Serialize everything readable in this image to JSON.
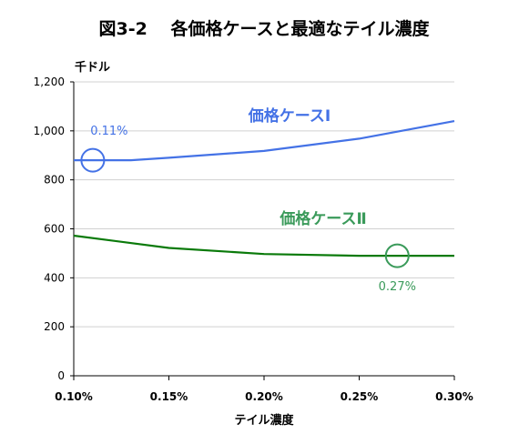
{
  "chart_data": {
    "type": "line",
    "title": "図3-2　 各価格ケースと最適なテイル濃度",
    "ylabel": "千ドル",
    "xlabel": "テイル濃度",
    "ylim": [
      0,
      1200
    ],
    "xlim": [
      0.001,
      0.003
    ],
    "y_ticks": [
      0,
      200,
      400,
      600,
      800,
      1000,
      1200
    ],
    "y_tick_labels": [
      "0",
      "200",
      "400",
      "600",
      "800",
      "1,000",
      "1,200"
    ],
    "x_ticks": [
      0.001,
      0.0015,
      0.002,
      0.0025,
      0.003
    ],
    "x_tick_labels": [
      "0.10%",
      "0.15%",
      "0.20%",
      "0.25%",
      "0.30%"
    ],
    "grid": "horizontal",
    "series": [
      {
        "name": "価格ケースⅠ",
        "color": "#4472e6",
        "x": [
          0.001,
          0.0011,
          0.0013,
          0.0015,
          0.002,
          0.0025,
          0.003
        ],
        "values": [
          880,
          880,
          880,
          890,
          918,
          968,
          1040
        ],
        "marker": {
          "x": 0.0011,
          "y": 880,
          "label": "0.11%"
        }
      },
      {
        "name": "価格ケースⅡ",
        "color": "#0a7a0a",
        "label_color": "#3a9a5a",
        "x": [
          0.001,
          0.0015,
          0.002,
          0.0025,
          0.0027,
          0.003
        ],
        "values": [
          572,
          522,
          497,
          490,
          490,
          490
        ],
        "marker": {
          "x": 0.0027,
          "y": 490,
          "label": "0.27%"
        }
      }
    ]
  }
}
